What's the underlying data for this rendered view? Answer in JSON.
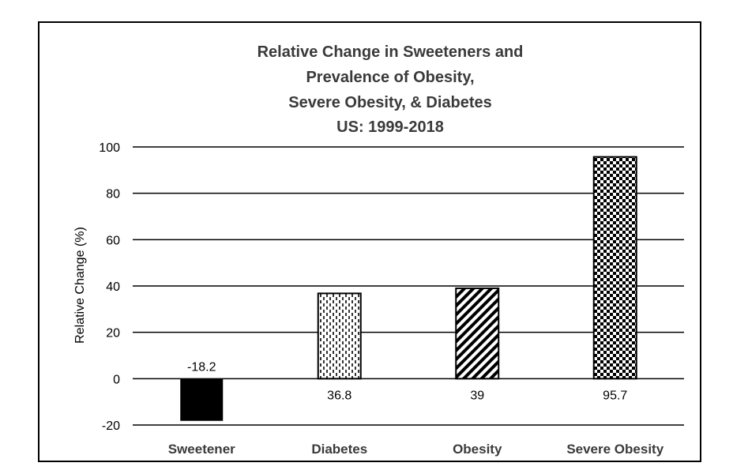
{
  "chart_data": {
    "type": "bar",
    "title_lines": [
      "Relative Change in Sweeteners and",
      "Prevalence of Obesity,",
      "Severe Obesity, & Diabetes",
      "US: 1999-2018"
    ],
    "categories": [
      "Sweetener",
      "Diabetes",
      "Obesity",
      "Severe Obesity"
    ],
    "values": [
      -18.2,
      36.8,
      39,
      95.7
    ],
    "data_labels": [
      "-18.2",
      "36.8",
      "39",
      "95.7"
    ],
    "patterns": [
      "solid",
      "dashed-vertical",
      "diagonal",
      "checker"
    ],
    "ylabel": "Relative Change (%)",
    "xlabel": "",
    "ylim": [
      -20,
      100
    ],
    "yticks": [
      -20,
      0,
      20,
      40,
      60,
      80,
      100
    ],
    "grid": true,
    "colors": {
      "bar_fill": "#000000",
      "text": "#000000",
      "title_text": "#3a3a3a",
      "grid": "#000000"
    }
  }
}
